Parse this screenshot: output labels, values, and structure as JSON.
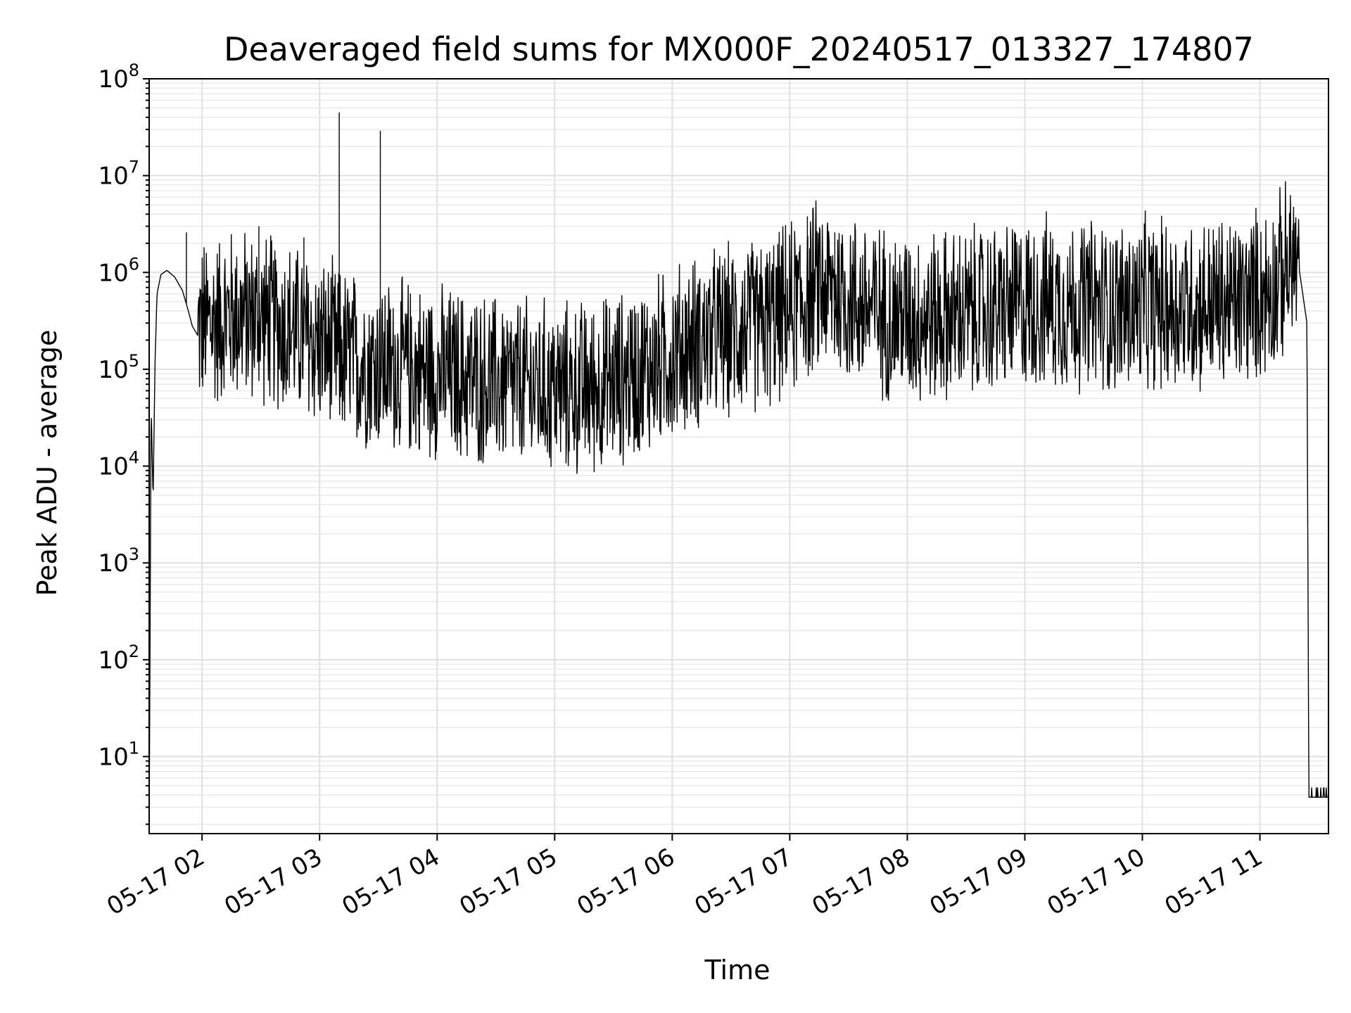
{
  "chart_data": {
    "type": "line",
    "title": "Deaveraged field sums for MX000F_20240517_013327_174807",
    "xlabel": "Time",
    "ylabel": "Peak ADU - average",
    "yscale": "log",
    "ylim": [
      1.6,
      100000000
    ],
    "xlim": [
      "2024-05-17 01:33:00",
      "2024-05-17 11:35:00"
    ],
    "grid": true,
    "line_color": "#000000",
    "grid_color": "#e0e0e0",
    "x_tick_labels": [
      "05-17 02",
      "05-17 03",
      "05-17 04",
      "05-17 05",
      "05-17 06",
      "05-17 07",
      "05-17 08",
      "05-17 09",
      "05-17 10",
      "05-17 11"
    ],
    "x_ticks": [
      "2024-05-17 02:00",
      "2024-05-17 03:00",
      "2024-05-17 04:00",
      "2024-05-17 05:00",
      "2024-05-17 06:00",
      "2024-05-17 07:00",
      "2024-05-17 08:00",
      "2024-05-17 09:00",
      "2024-05-17 10:00",
      "2024-05-17 11:00"
    ],
    "y_tick_labels": [
      {
        "base": "10",
        "exp": "1"
      },
      {
        "base": "10",
        "exp": "2"
      },
      {
        "base": "10",
        "exp": "3"
      },
      {
        "base": "10",
        "exp": "4"
      },
      {
        "base": "10",
        "exp": "5"
      },
      {
        "base": "10",
        "exp": "6"
      },
      {
        "base": "10",
        "exp": "7"
      },
      {
        "base": "10",
        "exp": "8"
      }
    ],
    "series": [
      {
        "x": [
          "2024-05-17 01:33",
          "2024-05-17 01:34",
          "2024-05-17 01:35",
          "2024-05-17 01:36",
          "2024-05-17 01:37",
          "2024-05-17 01:39",
          "2024-05-17 01:42",
          "2024-05-17 01:46",
          "2024-05-17 01:50",
          "2024-05-17 01:53",
          "2024-05-17 01:55",
          "2024-05-17 01:58",
          "2024-05-17 02:05",
          "2024-05-17 02:15",
          "2024-05-17 02:30",
          "2024-05-17 02:45",
          "2024-05-17 03:00",
          "2024-05-17 03:10",
          "2024-05-17 03:20",
          "2024-05-17 03:35",
          "2024-05-17 03:50",
          "2024-05-17 04:10",
          "2024-05-17 04:30",
          "2024-05-17 04:50",
          "2024-05-17 05:10",
          "2024-05-17 05:30",
          "2024-05-17 05:50",
          "2024-05-17 06:10",
          "2024-05-17 06:30",
          "2024-05-17 06:50",
          "2024-05-17 07:05",
          "2024-05-17 07:15",
          "2024-05-17 07:30",
          "2024-05-17 07:50",
          "2024-05-17 08:10",
          "2024-05-17 08:30",
          "2024-05-17 08:50",
          "2024-05-17 09:10",
          "2024-05-17 09:30",
          "2024-05-17 09:50",
          "2024-05-17 10:10",
          "2024-05-17 10:30",
          "2024-05-17 10:50",
          "2024-05-17 11:05",
          "2024-05-17 11:15",
          "2024-05-17 11:20",
          "2024-05-17 11:24",
          "2024-05-17 11:25",
          "2024-05-17 11:35"
        ],
        "y": [
          1.6,
          45000,
          4300,
          120000,
          600000,
          950000,
          1050000,
          900000,
          650000,
          400000,
          280000,
          220000,
          250000,
          300000,
          280000,
          220000,
          150000,
          120000,
          100000,
          90000,
          80000,
          70000,
          60000,
          55000,
          50000,
          60000,
          90000,
          150000,
          200000,
          250000,
          400000,
          600000,
          450000,
          300000,
          280000,
          300000,
          350000,
          400000,
          380000,
          350000,
          380000,
          380000,
          400000,
          550000,
          900000,
          1100000,
          300000,
          3.8,
          3.8
        ],
        "spikes": [
          {
            "x": "2024-05-17 01:52",
            "y": 2600000
          },
          {
            "x": "2024-05-17 02:29",
            "y": 3000000
          },
          {
            "x": "2024-05-17 02:52",
            "y": 2300000
          },
          {
            "x": "2024-05-17 03:10",
            "y": 45000000
          },
          {
            "x": "2024-05-17 03:31",
            "y": 29000000
          },
          {
            "x": "2024-05-17 07:09",
            "y": 3800000
          },
          {
            "x": "2024-05-17 07:23",
            "y": 2600000
          },
          {
            "x": "2024-05-17 10:01",
            "y": 3200000
          },
          {
            "x": "2024-05-17 11:17",
            "y": 3100000
          }
        ]
      }
    ]
  }
}
